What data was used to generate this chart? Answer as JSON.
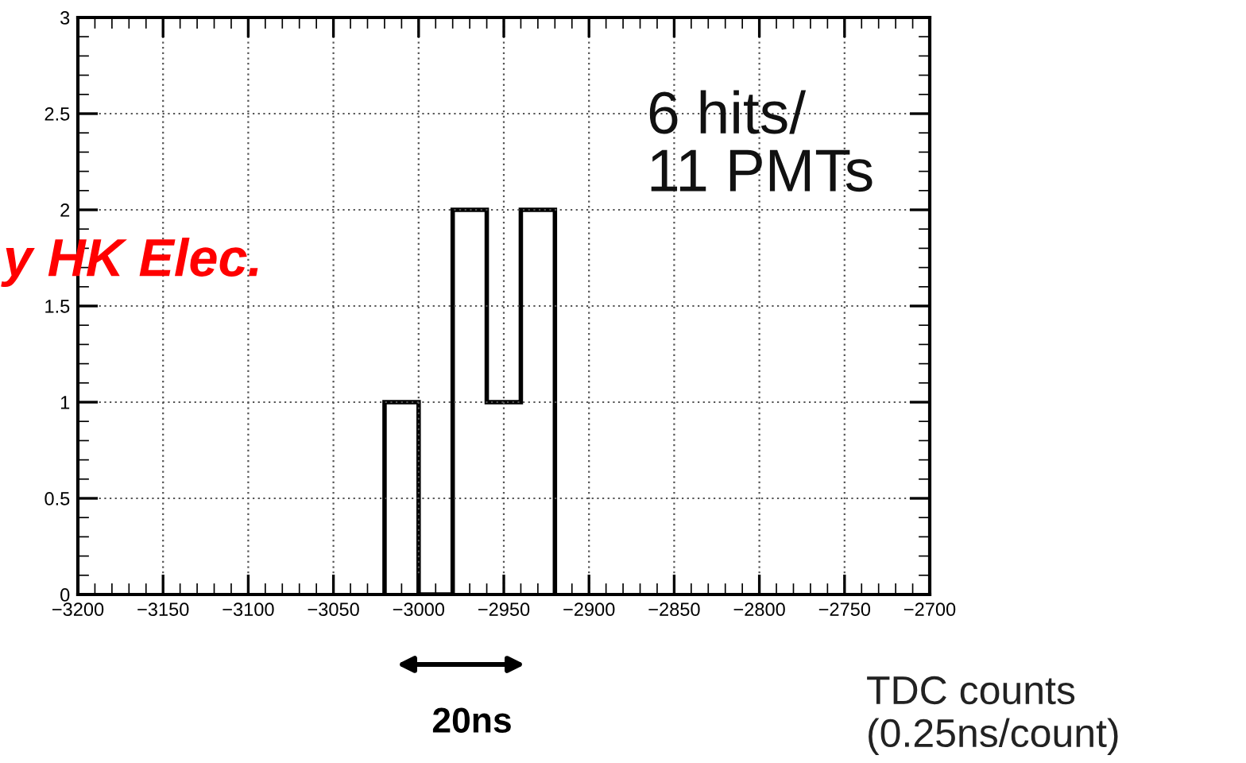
{
  "chart_data": {
    "type": "histogram",
    "bins": [
      -3020,
      -3000,
      -2980,
      -2960,
      -2940,
      -2920
    ],
    "values": [
      1,
      0,
      2,
      1,
      2
    ],
    "color": "#000000",
    "xlim": [
      -3200,
      -2700
    ],
    "xticks": [
      -3200,
      -3150,
      -3100,
      -3050,
      -3000,
      -2950,
      -2900,
      -2850,
      -2800,
      -2750,
      -2700
    ],
    "ylim": [
      0,
      3
    ],
    "yticks": [
      0,
      0.5,
      1,
      1.5,
      2,
      2.5,
      3
    ],
    "xlabel": "TDC counts\n(0.25ns/count)",
    "grid": true,
    "annotations": [
      "6 hits/\n11 PMTs",
      "y HK Elec.",
      "20ns"
    ]
  }
}
